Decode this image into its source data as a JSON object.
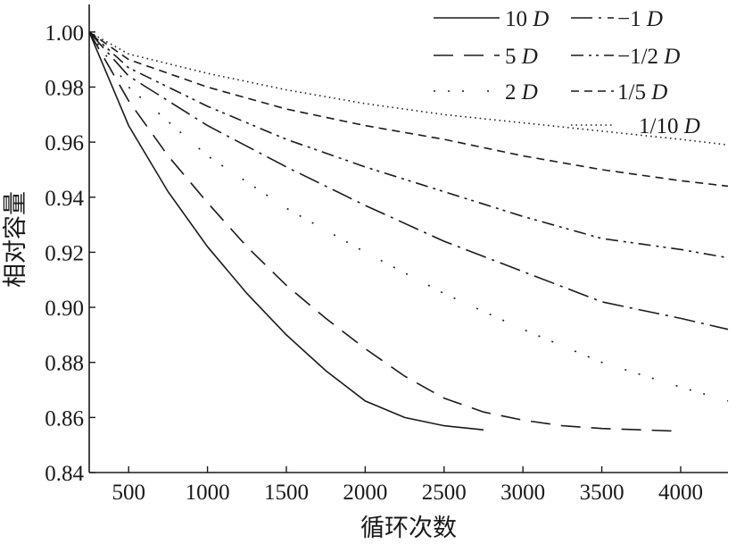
{
  "chart_data": {
    "type": "line",
    "title": "",
    "xlabel": "循环次数",
    "ylabel": "相对容量",
    "xlim": [
      250,
      4300
    ],
    "ylim": [
      0.84,
      1.01
    ],
    "x_ticks": [
      500,
      1000,
      1500,
      2000,
      2500,
      3000,
      3500,
      4000
    ],
    "y_ticks": [
      "1.00",
      "0.98",
      "0.96",
      "0.94",
      "0.92",
      "0.90",
      "0.88",
      "0.86",
      "0.84"
    ],
    "grid": false,
    "legend_position": "top-right",
    "series": [
      {
        "name": "10 D",
        "style": "solid",
        "x": [
          250,
          500,
          750,
          1000,
          1250,
          1500,
          1750,
          2000,
          2250,
          2500,
          2750
        ],
        "y": [
          1.0,
          0.966,
          0.942,
          0.922,
          0.905,
          0.89,
          0.877,
          0.866,
          0.86,
          0.857,
          0.8555
        ]
      },
      {
        "name": "5 D",
        "style": "long-dash",
        "x": [
          250,
          500,
          750,
          1000,
          1250,
          1500,
          1750,
          2000,
          2250,
          2500,
          2750,
          3000,
          3250,
          3500,
          3750,
          4000
        ],
        "y": [
          1.0,
          0.975,
          0.955,
          0.938,
          0.922,
          0.908,
          0.896,
          0.885,
          0.875,
          0.867,
          0.862,
          0.859,
          0.857,
          0.856,
          0.8555,
          0.855
        ]
      },
      {
        "name": "2 D",
        "style": "dash-dot-dot-wide",
        "x": [
          250,
          500,
          1000,
          1500,
          2000,
          2500,
          3000,
          3500,
          4000,
          4300
        ],
        "y": [
          1.0,
          0.98,
          0.955,
          0.936,
          0.92,
          0.905,
          0.892,
          0.88,
          0.871,
          0.866
        ]
      },
      {
        "name": "−1 D",
        "style": "dash-dot",
        "x": [
          250,
          500,
          1000,
          1500,
          2000,
          2500,
          3000,
          3500,
          4000,
          4300
        ],
        "y": [
          1.0,
          0.984,
          0.966,
          0.951,
          0.937,
          0.924,
          0.913,
          0.902,
          0.896,
          0.892
        ]
      },
      {
        "name": "−1/2 D",
        "style": "dash-dot-dot",
        "x": [
          250,
          500,
          1000,
          1500,
          2000,
          2500,
          3000,
          3500,
          4000,
          4300
        ],
        "y": [
          1.0,
          0.987,
          0.973,
          0.961,
          0.951,
          0.942,
          0.933,
          0.925,
          0.921,
          0.918
        ]
      },
      {
        "name": "1/5 D",
        "style": "short-dash",
        "x": [
          250,
          500,
          1000,
          1500,
          2000,
          2500,
          3000,
          3500,
          4000,
          4300
        ],
        "y": [
          1.0,
          0.99,
          0.98,
          0.972,
          0.966,
          0.961,
          0.955,
          0.95,
          0.946,
          0.944
        ]
      },
      {
        "name": "1/10 D",
        "style": "dotted",
        "x": [
          250,
          500,
          1000,
          1500,
          2000,
          2500,
          3000,
          3500,
          4000,
          4300
        ],
        "y": [
          1.0,
          0.992,
          0.985,
          0.979,
          0.974,
          0.97,
          0.967,
          0.964,
          0.961,
          0.959
        ]
      }
    ]
  },
  "legend": {
    "entries": [
      "10 D",
      "5 D",
      "2 D",
      "−1 D",
      "−1/2 D",
      "1/5 D",
      "1/10 D"
    ]
  }
}
